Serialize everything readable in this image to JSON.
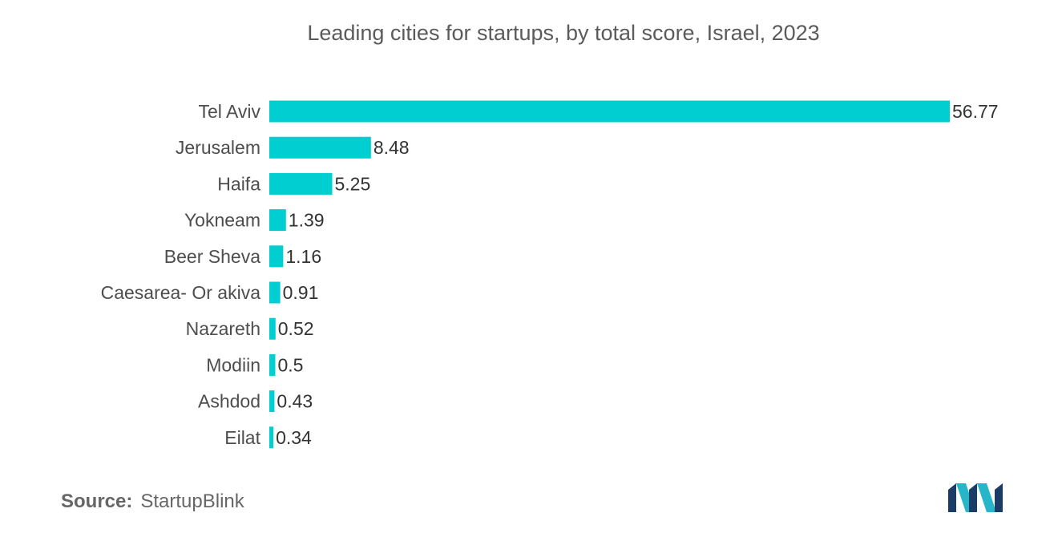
{
  "chart_data": {
    "type": "bar",
    "orientation": "horizontal",
    "title": "Leading cities for startups, by total score, Israel, 2023",
    "xlabel": "",
    "ylabel": "",
    "categories": [
      "Tel Aviv",
      "Jerusalem",
      "Haifa",
      "Yokneam",
      "Beer Sheva",
      "Caesarea- Or akiva",
      "Nazareth",
      "Modiin",
      "Ashdod",
      "Eilat"
    ],
    "values": [
      56.77,
      8.48,
      5.25,
      1.39,
      1.16,
      0.91,
      0.52,
      0.5,
      0.43,
      0.34
    ],
    "value_labels": [
      "56.77",
      "8.48",
      "5.25",
      "1.39",
      "1.16",
      "0.91",
      "0.52",
      "0.5",
      "0.43",
      "0.34"
    ],
    "xlim": [
      0,
      56.77
    ],
    "grid": false,
    "legend": "none",
    "bar_color": "#00CED1"
  },
  "footer": {
    "source_label": "Source:",
    "source_value": "StartupBlink"
  },
  "logo": {
    "icon": "mordor-intelligence-logo-icon",
    "colors": [
      "#1B3C66",
      "#27B5C9"
    ]
  }
}
